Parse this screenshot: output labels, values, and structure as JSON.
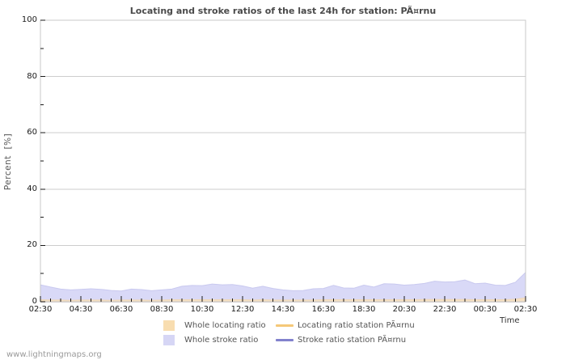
{
  "title": "Locating and stroke ratios of the last 24h for station: PÃ¤rnu",
  "axes": {
    "ylabel": "Percent  [%]",
    "xlabel": "Time"
  },
  "watermark": "www.lightningmaps.org",
  "legend": {
    "items": [
      {
        "label": "Whole locating ratio",
        "color": "#f8ddb0",
        "type": "swatch"
      },
      {
        "label": "Whole stroke ratio",
        "color": "#d6d6f5",
        "type": "swatch"
      },
      {
        "label": "Locating ratio station PÃ¤rnu",
        "color": "#f5c878",
        "type": "line"
      },
      {
        "label": "Stroke ratio station PÃ¤rnu",
        "color": "#8282cd",
        "type": "line"
      }
    ]
  },
  "chart_data": {
    "type": "area",
    "title": "Locating and stroke ratios of the last 24h for station: PÃ¤rnu",
    "xlabel": "Time",
    "ylabel": "Percent  [%]",
    "ylim": [
      0,
      100
    ],
    "yticks": [
      0,
      20,
      40,
      60,
      80,
      100
    ],
    "y_minor_ticks": [
      10,
      30,
      50,
      70,
      90
    ],
    "grid": "horizontal-major",
    "legend_position": "bottom",
    "x_major_every": 4,
    "x": [
      "02:30",
      "03:00",
      "03:30",
      "04:00",
      "04:30",
      "05:00",
      "05:30",
      "06:00",
      "06:30",
      "07:00",
      "07:30",
      "08:00",
      "08:30",
      "09:00",
      "09:30",
      "10:00",
      "10:30",
      "11:00",
      "11:30",
      "12:00",
      "12:30",
      "13:00",
      "13:30",
      "14:00",
      "14:30",
      "15:00",
      "15:30",
      "16:00",
      "16:30",
      "17:00",
      "17:30",
      "18:00",
      "18:30",
      "19:00",
      "19:30",
      "20:00",
      "20:30",
      "21:00",
      "21:30",
      "22:00",
      "22:30",
      "23:00",
      "23:30",
      "00:00",
      "00:30",
      "01:00",
      "01:30",
      "02:00",
      "02:30"
    ],
    "x_major_ticks": [
      "02:30",
      "04:30",
      "06:30",
      "08:30",
      "10:30",
      "12:30",
      "14:30",
      "16:30",
      "18:30",
      "20:30",
      "22:30",
      "00:30",
      "02:30"
    ],
    "series": [
      {
        "name": "Whole locating ratio",
        "kind": "area",
        "fill": "#f6e0c2",
        "edge": "#eed7b8",
        "values": [
          0.7,
          0.6,
          0.6,
          0.5,
          0.6,
          0.6,
          0.6,
          0.5,
          0.6,
          0.6,
          0.6,
          0.5,
          0.6,
          0.7,
          0.7,
          0.7,
          0.7,
          0.7,
          0.7,
          0.7,
          0.7,
          0.6,
          0.7,
          0.6,
          0.6,
          0.6,
          0.6,
          0.6,
          0.7,
          0.7,
          0.7,
          0.7,
          0.7,
          0.7,
          0.7,
          0.7,
          0.7,
          0.7,
          0.8,
          0.8,
          0.8,
          0.8,
          0.8,
          0.7,
          0.7,
          0.7,
          0.7,
          0.9,
          1.4
        ]
      },
      {
        "name": "Whole stroke ratio",
        "kind": "area",
        "fill": "#d9d9f7",
        "edge": "#c9c9ef",
        "values": [
          6.0,
          5.2,
          4.5,
          4.2,
          4.4,
          4.6,
          4.4,
          4.0,
          3.8,
          4.5,
          4.3,
          3.9,
          4.2,
          4.5,
          5.5,
          5.8,
          5.7,
          6.3,
          6.0,
          6.1,
          5.6,
          4.8,
          5.5,
          4.7,
          4.2,
          3.9,
          4.0,
          4.6,
          4.7,
          5.8,
          4.9,
          4.8,
          5.9,
          5.2,
          6.4,
          6.3,
          5.9,
          6.1,
          6.5,
          7.3,
          7.0,
          7.1,
          7.7,
          6.4,
          6.6,
          5.9,
          5.8,
          6.9,
          10.4
        ]
      },
      {
        "name": "Locating ratio station PÃ¤rnu",
        "kind": "line",
        "color": "#f5c878",
        "values": [
          0,
          0,
          0,
          0,
          0,
          0,
          0,
          0,
          0,
          0,
          0,
          0,
          0,
          0,
          0,
          0,
          0,
          0,
          0,
          0,
          0,
          0,
          0,
          0,
          0,
          0,
          0,
          0,
          0,
          0,
          0,
          0,
          0,
          0,
          0,
          0,
          0,
          0,
          0,
          0,
          0,
          0,
          0,
          0,
          0,
          0,
          0,
          0,
          0
        ]
      },
      {
        "name": "Stroke ratio station PÃ¤rnu",
        "kind": "line",
        "color": "#8282cd",
        "values": [
          0,
          0,
          0,
          0,
          0,
          0,
          0,
          0,
          0,
          0,
          0,
          0,
          0,
          0,
          0,
          0,
          0,
          0,
          0,
          0,
          0,
          0,
          0,
          0,
          0,
          0,
          0,
          0,
          0,
          0,
          0,
          0,
          0,
          0,
          0,
          0,
          0,
          0,
          0,
          0,
          0,
          0,
          0,
          0,
          0,
          0,
          0,
          0,
          0
        ]
      }
    ],
    "draw_order": [
      2,
      3,
      1,
      0
    ],
    "plot_colors": {
      "gridline": "#cdcdcd",
      "border": "#c8c8c8",
      "tick": "#1a1a1a"
    }
  }
}
